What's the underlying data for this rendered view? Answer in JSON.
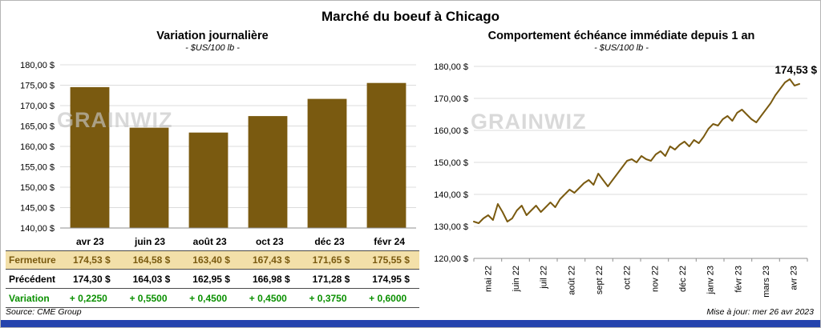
{
  "page": {
    "title": "Marché du boeuf à Chicago",
    "watermark": "GRAINWIZ",
    "source": "Source: CME Group",
    "updated": "Mise à jour: mer 26 avr 2023",
    "accent_blue": "#2443ad",
    "brand_brown": "#7a5a10",
    "highlight_tan": "#f3e0a9",
    "variation_green": "#0a9000"
  },
  "left_chart": {
    "title": "Variation journalière",
    "subtitle": "- $US/100 lb -"
  },
  "right_chart": {
    "title": "Comportement échéance immédiate depuis 1 an",
    "subtitle": "- $US/100 lb -"
  },
  "table": {
    "rows": [
      {
        "label": "Fermeture",
        "values": [
          "174,53 $",
          "164,58 $",
          "163,40 $",
          "167,43 $",
          "171,65 $",
          "175,55 $"
        ]
      },
      {
        "label": "Précédent",
        "values": [
          "174,30 $",
          "164,03 $",
          "162,95 $",
          "166,98 $",
          "171,28 $",
          "174,95 $"
        ]
      },
      {
        "label": "Variation",
        "values": [
          "+ 0,2250",
          "+ 0,5500",
          "+ 0,4500",
          "+ 0,4500",
          "+ 0,3750",
          "+ 0,6000"
        ]
      }
    ]
  },
  "chart_data": [
    {
      "type": "bar",
      "title": "Variation journalière",
      "subtitle": "- $US/100 lb -",
      "categories": [
        "avr 23",
        "juin 23",
        "août 23",
        "oct 23",
        "déc 23",
        "févr 24"
      ],
      "values": [
        174.53,
        164.58,
        163.4,
        167.43,
        171.65,
        175.55
      ],
      "ylabel": "$US/100 lb",
      "ylim": [
        140,
        180
      ],
      "ytick_step": 5,
      "ytick_labels": [
        "180,00 $",
        "175,00 $",
        "170,00 $",
        "165,00 $",
        "160,00 $",
        "155,00 $",
        "150,00 $",
        "145,00 $",
        "140,00 $"
      ],
      "grid": "horizontal",
      "bar_color": "#7a5a10"
    },
    {
      "type": "line",
      "title": "Comportement échéance immédiate depuis 1 an",
      "subtitle": "- $US/100 lb -",
      "x_labels": [
        "mai 22",
        "juin 22",
        "juil 22",
        "août 22",
        "sept 22",
        "oct 22",
        "nov 22",
        "déc 22",
        "janv 23",
        "févr 23",
        "mars 23",
        "avr 23"
      ],
      "values": [
        131.5,
        131.0,
        132.5,
        133.5,
        132.0,
        137.0,
        134.5,
        131.5,
        132.5,
        135.0,
        136.5,
        133.5,
        135.0,
        136.5,
        134.5,
        136.0,
        137.5,
        136.0,
        138.5,
        140.0,
        141.5,
        140.5,
        142.0,
        143.5,
        144.5,
        143.0,
        146.5,
        144.5,
        142.5,
        144.5,
        146.5,
        148.5,
        150.5,
        151.0,
        150.0,
        152.0,
        151.0,
        150.5,
        152.5,
        153.5,
        152.0,
        155.0,
        154.0,
        155.5,
        156.5,
        155.0,
        157.0,
        156.0,
        158.0,
        160.5,
        162.0,
        161.5,
        163.5,
        164.5,
        163.0,
        165.5,
        166.5,
        165.0,
        163.5,
        162.5,
        164.5,
        166.5,
        168.5,
        171.0,
        173.0,
        175.0,
        176.0,
        174.0,
        174.53
      ],
      "ylabel": "$US/100 lb",
      "ylim": [
        120,
        180
      ],
      "ytick_step": 10,
      "ytick_labels": [
        "180,00 $",
        "170,00 $",
        "160,00 $",
        "150,00 $",
        "140,00 $",
        "130,00 $",
        "120,00 $"
      ],
      "grid": "horizontal",
      "end_value": 174.53,
      "end_label": "174,53 $",
      "line_color": "#7a5a10"
    }
  ]
}
